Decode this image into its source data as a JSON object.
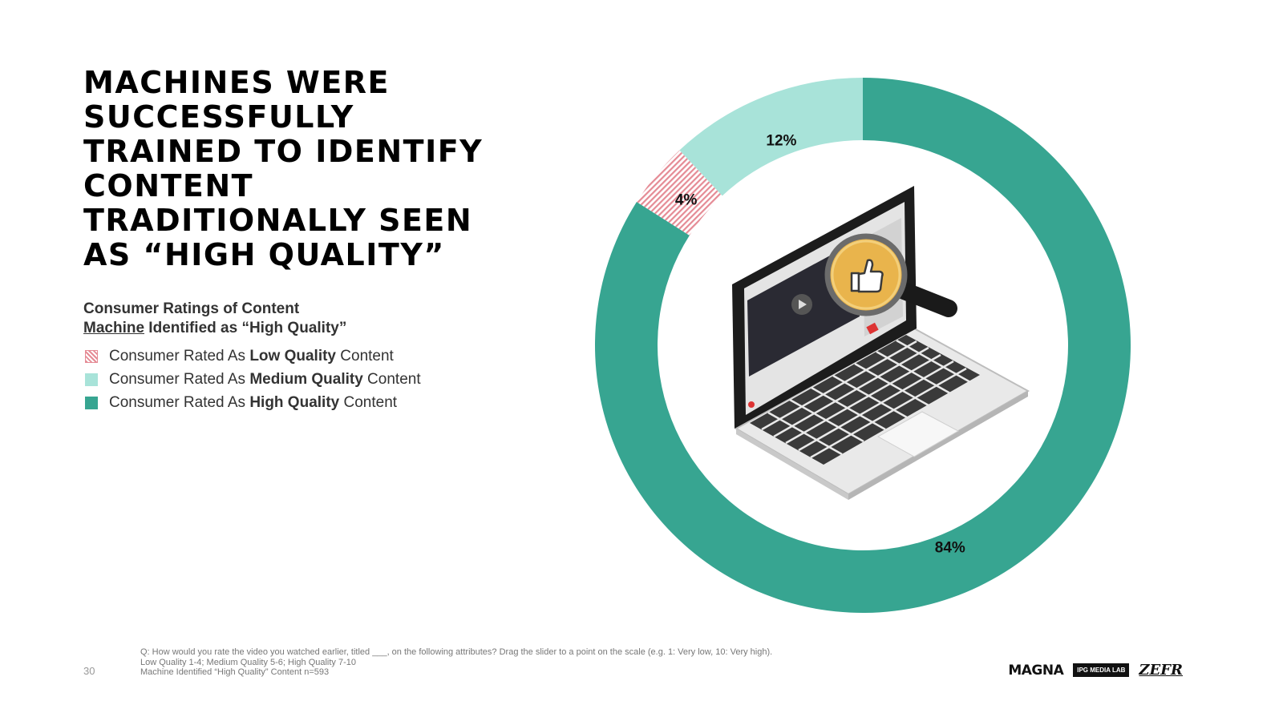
{
  "title": "MACHINES WERE SUCCESSFULLY TRAINED TO IDENTIFY CONTENT TRADITIONALLY SEEN AS “HIGH QUALITY”",
  "title_lines": [
    "MACHINES WERE",
    "SUCCESSFULLY",
    "TRAINED TO IDENTIFY",
    "CONTENT",
    "TRADITIONALLY SEEN",
    "AS “HIGH QUALITY”"
  ],
  "subtitle": {
    "line1": "Consumer Ratings of Content",
    "line2_underlined": "Machine",
    "line2_rest": " Identified as “High Quality”"
  },
  "legend": [
    {
      "prefix": "Consumer Rated As ",
      "bold": "Low Quality",
      "suffix": " Content",
      "color": "#e58b95",
      "pattern": "hatched"
    },
    {
      "prefix": "Consumer Rated As ",
      "bold": "Medium Quality",
      "suffix": " Content",
      "color": "#a8e3d9"
    },
    {
      "prefix": "Consumer Rated As ",
      "bold": "High Quality",
      "suffix": " Content",
      "color": "#37a591"
    }
  ],
  "chart_data": {
    "type": "pie",
    "variant": "donut",
    "slices": [
      {
        "name": "Consumer Rated As High Quality Content",
        "value": 84,
        "label": "84%",
        "color": "#37a591"
      },
      {
        "name": "Consumer Rated As Low Quality Content",
        "value": 4,
        "label": "4%",
        "color": "#e58b95",
        "pattern": "hatched"
      },
      {
        "name": "Consumer Rated As Medium Quality Content",
        "value": 12,
        "label": "12%",
        "color": "#a8e3d9"
      }
    ],
    "start": "top",
    "direction": "clockwise",
    "center_image": "laptop-with-magnifier-thumbs-up-icon"
  },
  "footnote": [
    "Q: How would you rate the video you watched earlier, titled ___, on the following attributes? Drag the slider to a point on the scale (e.g. 1: Very low, 10: Very high).",
    "Low Quality 1-4; Medium Quality 5-6; High Quality 7-10",
    "Machine Identified “High Quality” Content n=593"
  ],
  "page_number": "30",
  "logos": {
    "magna": "MAGNA",
    "ipg": "IPG MEDIA LAB",
    "zefr": "ZEFR"
  }
}
